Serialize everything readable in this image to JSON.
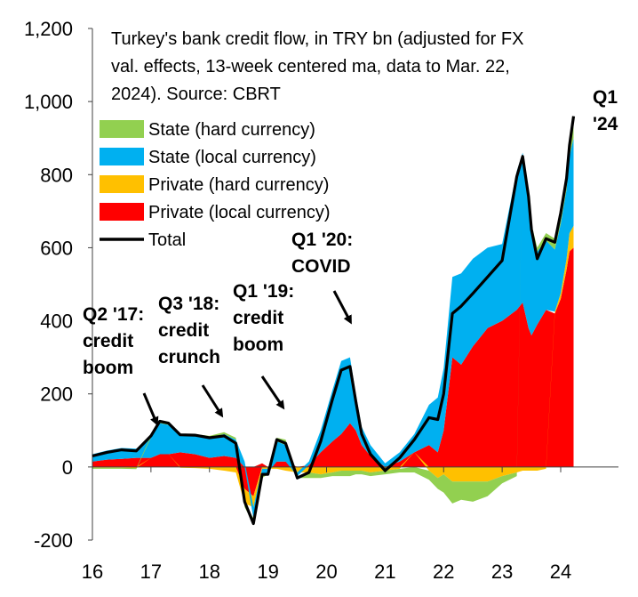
{
  "chart_data": {
    "type": "area",
    "title_lines": [
      "Turkey's bank credit flow, in TRY bn (adjusted for FX",
      "val. effects, 13-week centered ma, data to Mar. 22,",
      "2024). Source: CBRT"
    ],
    "xlabel": "",
    "ylabel": "",
    "xlim": [
      2016,
      2024.95
    ],
    "ylim": [
      -200,
      1200
    ],
    "x_tick_labels": [
      "16",
      "17",
      "18",
      "19",
      "20",
      "21",
      "22",
      "23",
      "24"
    ],
    "y_tick_labels": [
      "-200",
      "0",
      "200",
      "400",
      "600",
      "800",
      "1,000",
      "1,200"
    ],
    "x_ticks": [
      2016,
      2017,
      2018,
      2019,
      2020,
      2021,
      2022,
      2023,
      2024
    ],
    "y_ticks": [
      -200,
      0,
      200,
      400,
      600,
      800,
      1000,
      1200
    ],
    "legend_position": "upper-left",
    "x": [
      2016.0,
      2016.25,
      2016.5,
      2016.75,
      2017.0,
      2017.15,
      2017.3,
      2017.5,
      2017.75,
      2018.0,
      2018.25,
      2018.45,
      2018.6,
      2018.75,
      2018.9,
      2019.0,
      2019.15,
      2019.3,
      2019.5,
      2019.7,
      2019.9,
      2020.1,
      2020.25,
      2020.4,
      2020.5,
      2020.6,
      2020.75,
      2021.0,
      2021.25,
      2021.5,
      2021.75,
      2021.9,
      2022.0,
      2022.15,
      2022.3,
      2022.5,
      2022.75,
      2023.0,
      2023.25,
      2023.35,
      2023.45,
      2023.5,
      2023.6,
      2023.75,
      2023.9,
      2024.0,
      2024.1,
      2024.15,
      2024.22
    ],
    "series": [
      {
        "name": "Private (local currency)",
        "color": "#ff0000",
        "values": [
          15,
          20,
          22,
          25,
          25,
          35,
          35,
          40,
          35,
          25,
          30,
          25,
          -60,
          -80,
          10,
          0,
          15,
          15,
          0,
          5,
          40,
          70,
          90,
          120,
          100,
          60,
          30,
          0,
          15,
          40,
          60,
          40,
          100,
          300,
          280,
          330,
          380,
          400,
          430,
          450,
          380,
          360,
          390,
          430,
          420,
          460,
          540,
          590,
          600
        ]
      },
      {
        "name": "Private (hard currency)",
        "color": "#ffc000",
        "values": [
          -2,
          -2,
          -2,
          -3,
          0,
          0,
          0,
          -2,
          -3,
          -5,
          -10,
          -15,
          -40,
          -30,
          -5,
          -5,
          -5,
          -10,
          -15,
          -15,
          -20,
          -15,
          -10,
          -10,
          -10,
          -10,
          -15,
          -10,
          -5,
          0,
          -10,
          -30,
          -20,
          -40,
          -40,
          -40,
          -40,
          -25,
          -15,
          -10,
          -10,
          -10,
          -10,
          -5,
          5,
          15,
          30,
          50,
          60
        ]
      },
      {
        "name": "State (local currency)",
        "color": "#00b0f0",
        "values": [
          20,
          25,
          30,
          25,
          55,
          85,
          80,
          45,
          50,
          55,
          60,
          50,
          15,
          -30,
          -15,
          -10,
          55,
          45,
          -10,
          10,
          60,
          140,
          200,
          180,
          100,
          50,
          30,
          10,
          25,
          50,
          110,
          150,
          170,
          220,
          250,
          240,
          220,
          210,
          380,
          410,
          370,
          300,
          200,
          190,
          170,
          190,
          190,
          210,
          240
        ]
      },
      {
        "name": "State (hard currency)",
        "color": "#92d050",
        "values": [
          -3,
          -3,
          -3,
          -3,
          5,
          5,
          5,
          5,
          5,
          5,
          5,
          5,
          -10,
          -15,
          -10,
          -5,
          10,
          15,
          -5,
          -15,
          -10,
          -10,
          -15,
          -15,
          -10,
          -10,
          -10,
          -10,
          -10,
          -15,
          -25,
          -30,
          -50,
          -60,
          -50,
          -55,
          -40,
          -20,
          -10,
          0,
          0,
          5,
          10,
          20,
          30,
          40,
          40,
          50,
          60
        ]
      },
      {
        "name": "Total",
        "color": "#000000",
        "values": [
          30,
          40,
          47,
          44,
          85,
          125,
          120,
          88,
          87,
          80,
          85,
          65,
          -95,
          -155,
          -20,
          -20,
          75,
          65,
          -30,
          -15,
          70,
          185,
          265,
          275,
          180,
          90,
          35,
          -10,
          25,
          75,
          135,
          130,
          200,
          420,
          440,
          475,
          520,
          565,
          795,
          850,
          740,
          650,
          570,
          625,
          615,
          695,
          790,
          880,
          960
        ]
      }
    ],
    "annotations": [
      {
        "lines": [
          "Q2 '17:",
          "credit",
          "boom"
        ]
      },
      {
        "lines": [
          "Q3 '18:",
          "credit",
          "crunch"
        ]
      },
      {
        "lines": [
          "Q1 '19:",
          "credit",
          "boom"
        ]
      },
      {
        "lines": [
          "Q1 '20:",
          "COVID"
        ]
      },
      {
        "lines": [
          "Q1",
          "'24"
        ]
      }
    ]
  }
}
